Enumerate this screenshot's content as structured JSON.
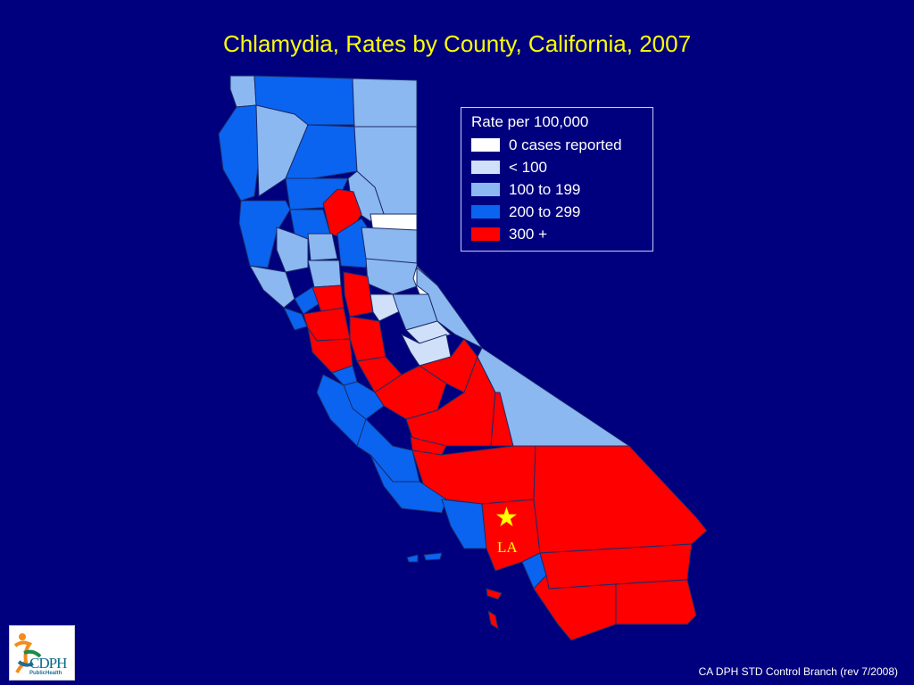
{
  "title": "Chlamydia, Rates by County, California, 2007",
  "legend": {
    "title": "Rate per 100,000",
    "items": [
      {
        "label": "0 cases reported",
        "color": "#ffffff"
      },
      {
        "label": "< 100",
        "color": "#cfe0f8"
      },
      {
        "label": "100 to 199",
        "color": "#8cb8f2"
      },
      {
        "label": "200 to 299",
        "color": "#0a64f0"
      },
      {
        "label": "300 +",
        "color": "#ff0000"
      }
    ]
  },
  "map": {
    "region": "California",
    "marker": {
      "symbol": "star",
      "label": "LA",
      "color": "#ffff00"
    }
  },
  "logo": {
    "text": "CDPH",
    "subtext": "PublicHealth"
  },
  "footer": "CA DPH STD Control Branch (rev 7/2008)"
}
